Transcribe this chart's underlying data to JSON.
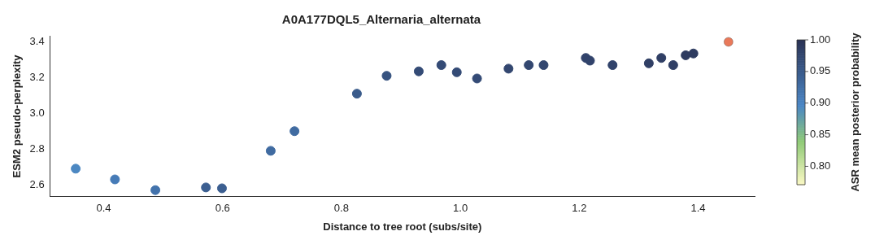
{
  "chart_data": {
    "type": "scatter",
    "title": "A0A177DQL5_Alternaria_alternata",
    "xlabel": "Distance to tree root (subs/site)",
    "ylabel": "ESM2 pseudo-perplexity",
    "clabel": "ASR mean posterior probability",
    "xlim": [
      0.31,
      1.495
    ],
    "xticks": [
      0.4,
      0.6,
      0.8,
      {
        "value": 1,
        "label": "1.0"
      },
      1.2,
      1.4
    ],
    "ylim": [
      2.533,
      3.434
    ],
    "yticks": [
      2.6,
      2.8,
      {
        "value": 3,
        "label": "3.0"
      },
      3.2,
      3.4
    ],
    "clim": [
      0.771,
      1.0
    ],
    "cticks": [
      {
        "value": 0.8,
        "label": "0.80"
      },
      0.85,
      {
        "value": 0.9,
        "label": "0.90"
      },
      0.95,
      {
        "value": 1,
        "label": "1.00"
      }
    ],
    "grid": false,
    "legend": false,
    "marker": "circle",
    "series": [
      {
        "x": [
          0.353,
          0.419,
          0.487,
          0.572,
          0.599,
          0.681,
          0.721,
          0.826,
          0.876,
          0.93,
          0.968,
          0.994,
          1.028,
          1.081,
          1.115,
          1.14,
          1.211,
          1.218,
          1.256,
          1.317,
          1.338,
          1.358,
          1.379,
          1.392
        ],
        "values": [
          2.69,
          2.63,
          2.57,
          2.585,
          2.58,
          2.79,
          2.9,
          3.11,
          3.21,
          3.235,
          3.27,
          3.23,
          3.195,
          3.25,
          3.27,
          3.27,
          3.31,
          3.295,
          3.27,
          3.28,
          3.31,
          3.27,
          3.325,
          3.335
        ],
        "colors": [
          "#4c88c2",
          "#467bb7",
          "#4373ac",
          "#3c5f91",
          "#3c5f91",
          "#406ba1",
          "#406ba1",
          "#3a5b8b",
          "#375380",
          "#344b76",
          "#344b76",
          "#344b76",
          "#344b76",
          "#334770",
          "#334770",
          "#334770",
          "#31436b",
          "#31436b",
          "#31436b",
          "#303f65",
          "#303f65",
          "#303f65",
          "#2e3b60",
          "#2e3b60"
        ],
        "cvalues": [
          0.895,
          0.91,
          0.92,
          0.945,
          0.945,
          0.93,
          0.93,
          0.95,
          0.96,
          0.97,
          0.97,
          0.97,
          0.97,
          0.975,
          0.975,
          0.975,
          0.98,
          0.98,
          0.98,
          0.985,
          0.985,
          0.985,
          0.99,
          0.99
        ]
      },
      {
        "x": [
          1.451
        ],
        "values": [
          3.4
        ],
        "color": "#e9795a"
      }
    ]
  }
}
